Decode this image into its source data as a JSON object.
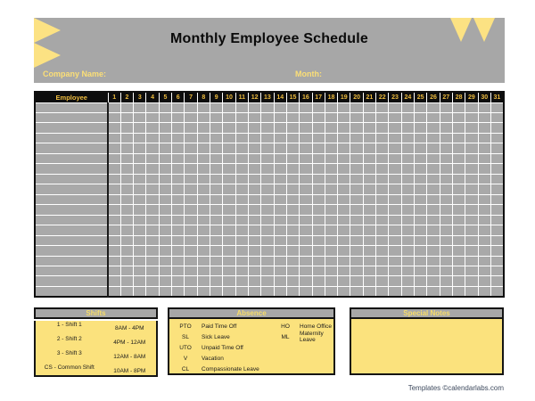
{
  "page": {
    "title": "Monthly Employee Schedule",
    "company_label": "Company Name:",
    "month_label": "Month:",
    "footer": "Templates ©calendarlabs.com"
  },
  "colors": {
    "banner_gray": "#a7a7a7",
    "accent_yellow": "#fbe27d",
    "triangle_yellow": "#fce283",
    "table_header_bg": "#0d0d0d",
    "table_header_text": "#eebc3f",
    "cell_gray": "#a9a9a9",
    "label_yellow": "#fcdf76",
    "footer_text": "#3e4a5e"
  },
  "schedule_table": {
    "employee_header": "Employee",
    "days": [
      "1",
      "2",
      "3",
      "4",
      "5",
      "6",
      "7",
      "8",
      "9",
      "10",
      "11",
      "12",
      "13",
      "14",
      "15",
      "16",
      "17",
      "18",
      "19",
      "20",
      "21",
      "22",
      "23",
      "24",
      "25",
      "26",
      "27",
      "28",
      "29",
      "30",
      "31"
    ],
    "row_count": 19
  },
  "shifts": {
    "title": "Shifts",
    "rows": [
      {
        "label": "1 - Shift 1",
        "time": "8AM - 4PM"
      },
      {
        "label": "2 - Shift 2",
        "time": "4PM - 12AM"
      },
      {
        "label": "3 - Shift 3",
        "time": "12AM - 8AM"
      },
      {
        "label": "CS - Common Shift",
        "time": "10AM - 8PM"
      }
    ]
  },
  "absence": {
    "title": "Absence",
    "left": [
      {
        "code": "PTO",
        "desc": "Paid Time Off"
      },
      {
        "code": "SL",
        "desc": "Sick Leave"
      },
      {
        "code": "UTO",
        "desc": "Unpaid Time Off"
      },
      {
        "code": "V",
        "desc": "Vacation"
      },
      {
        "code": "CL",
        "desc": "Compassionate Leave"
      }
    ],
    "right": [
      {
        "code": "HO",
        "desc": "Home Office"
      },
      {
        "code": "ML",
        "desc": "Maternity Leave"
      }
    ]
  },
  "special_notes": {
    "title": "Special Notes"
  }
}
